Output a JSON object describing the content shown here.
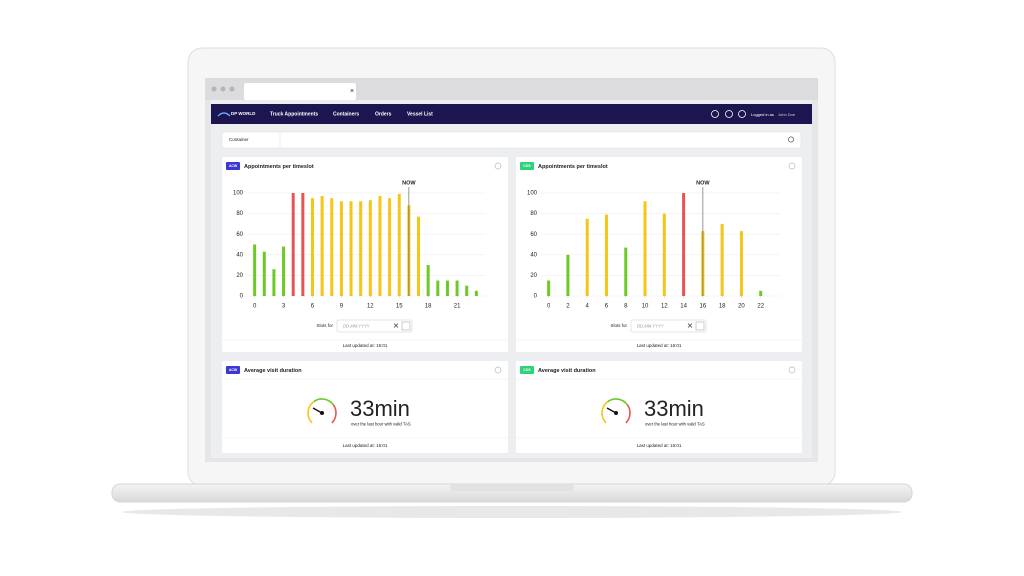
{
  "browser": {
    "tab_close": "×"
  },
  "nav": {
    "logo": "DP WORLD",
    "items": [
      "Truck Appointments",
      "Containers",
      "Orders",
      "Vessel List"
    ],
    "logged_in": "Logged in as",
    "user": "John Doe"
  },
  "search": {
    "select": "Container"
  },
  "panels": [
    {
      "badge": "ACW",
      "badge_color": "#3b36d6",
      "chart_data": {
        "type": "bar",
        "title": "Appointments per timeslot",
        "x": [
          0,
          1,
          2,
          3,
          4,
          5,
          6,
          7,
          8,
          9,
          10,
          11,
          12,
          13,
          14,
          15,
          16,
          17,
          18,
          19,
          20,
          21,
          22,
          23
        ],
        "values": [
          50,
          43,
          26,
          48,
          100,
          100,
          95,
          97,
          95,
          92,
          92,
          92,
          93,
          97,
          95,
          99,
          88,
          77,
          30,
          15,
          15,
          15,
          10,
          5
        ],
        "colors": [
          "#6cc926",
          "#6cc926",
          "#6cc926",
          "#6cc926",
          "#e85454",
          "#e85454",
          "#f5c518",
          "#f5c518",
          "#f5c518",
          "#f5c518",
          "#f5c518",
          "#f5c518",
          "#f5c518",
          "#f5c518",
          "#f5c518",
          "#f5c518",
          "#f5c518",
          "#f5c518",
          "#6cc926",
          "#6cc926",
          "#6cc926",
          "#6cc926",
          "#6cc926",
          "#6cc926"
        ],
        "xlim": [
          -1,
          24
        ],
        "xticks": [
          0,
          3,
          6,
          9,
          12,
          15,
          18,
          21
        ],
        "ylim": [
          0,
          100
        ],
        "yticks": [
          0,
          20,
          40,
          60,
          80,
          100
        ],
        "grid": true,
        "annotation": {
          "label": "NOW",
          "x": 16
        }
      },
      "slots_label": "Slots for",
      "date_placeholder": "DD.MM.YYYY",
      "updated": "Last updated at: 16:01"
    },
    {
      "badge": "CDS",
      "badge_color": "#2fd17a",
      "chart_data": {
        "type": "bar",
        "title": "Appointments per timeslot",
        "x": [
          0,
          2,
          4,
          6,
          8,
          10,
          12,
          14,
          16,
          18,
          20,
          22
        ],
        "values": [
          15,
          40,
          75,
          79,
          47,
          92,
          80,
          100,
          63,
          70,
          63,
          5
        ],
        "colors": [
          "#6cc926",
          "#6cc926",
          "#f5c518",
          "#f5c518",
          "#6cc926",
          "#f5c518",
          "#f5c518",
          "#e85454",
          "#f5c518",
          "#f5c518",
          "#f5c518",
          "#6cc926"
        ],
        "xlim": [
          -1,
          24
        ],
        "xticks": [
          0,
          2,
          4,
          6,
          8,
          10,
          12,
          14,
          16,
          18,
          20,
          22
        ],
        "ylim": [
          0,
          100
        ],
        "yticks": [
          0,
          20,
          40,
          60,
          80,
          100
        ],
        "grid": true,
        "annotation": {
          "label": "NOW",
          "x": 16
        }
      },
      "slots_label": "Slots for",
      "date_placeholder": "DD.MM.YYYY",
      "updated": "Last updated at: 16:01"
    }
  ],
  "duration": [
    {
      "badge": "ACW",
      "badge_color": "#3b36d6",
      "title": "Average visit duration",
      "value": "33min",
      "caption": "over the last hour with valid TAS",
      "updated": "Last updated at: 16:01"
    },
    {
      "badge": "CDS",
      "badge_color": "#2fd17a",
      "title": "Average visit duration",
      "value": "33min",
      "caption": "over the last hour with valid TAS",
      "updated": "Last updated at: 16:01"
    }
  ]
}
